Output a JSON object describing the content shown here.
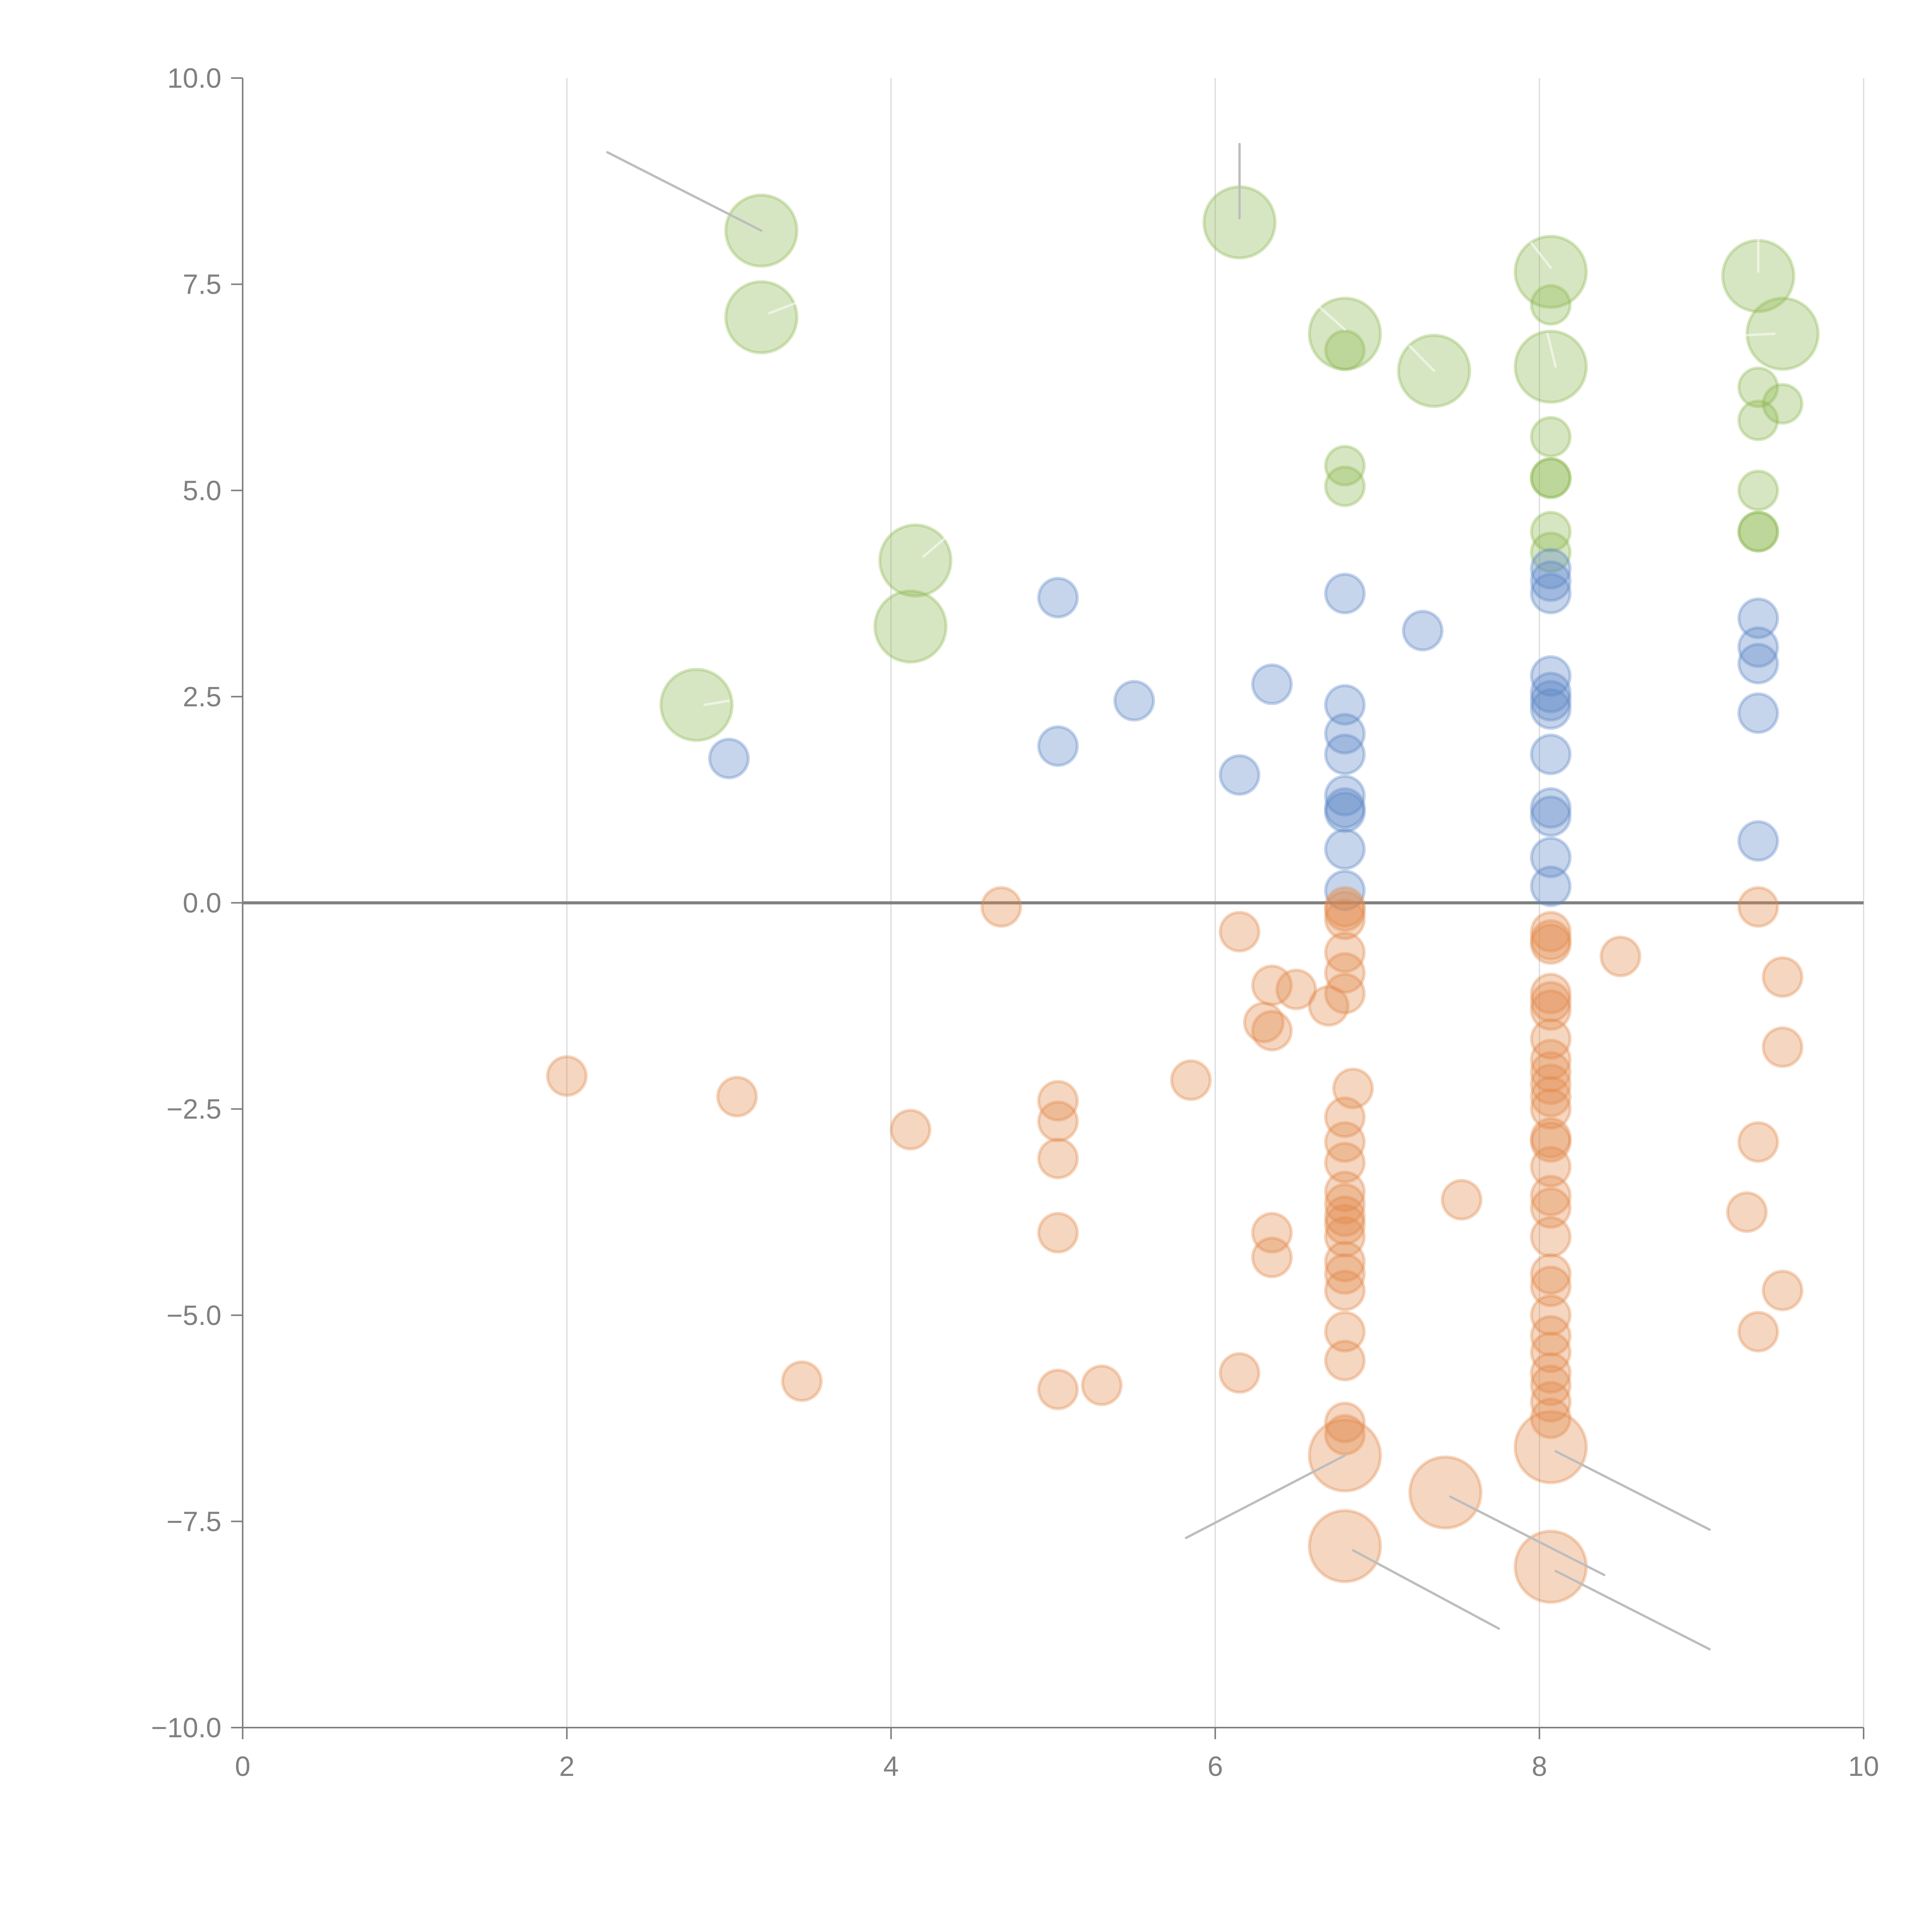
{
  "chart_data": {
    "type": "scatter",
    "title": "",
    "xlabel": "",
    "ylabel": "",
    "xlim": [
      0,
      10
    ],
    "ylim": [
      -10,
      10
    ],
    "x_ticks": [
      "0",
      "2",
      "4",
      "6",
      "8",
      "10"
    ],
    "y_ticks": [
      "10.0",
      "7.5",
      "5.0",
      "2.5",
      "0.0",
      "−2.5",
      "−5.0",
      "−7.5",
      "−10.0"
    ],
    "x_tick_values": [
      0,
      2,
      4,
      6,
      8,
      10
    ],
    "y_tick_values": [
      10,
      7.5,
      5,
      2.5,
      0,
      -2.5,
      -5,
      -7.5,
      -10
    ],
    "grid": "vertical",
    "zero_line": true,
    "legend": "none",
    "colors": {
      "green": "#8bb84f",
      "blue": "#5b87c5",
      "orange": "#e3894a"
    },
    "series": [
      {
        "name": "green",
        "color": "#8bb84f",
        "points": [
          {
            "x": 3.2,
            "y": 8.15,
            "size": 2
          },
          {
            "x": 3.2,
            "y": 7.1,
            "size": 2
          },
          {
            "x": 6.15,
            "y": 8.25,
            "size": 2
          },
          {
            "x": 6.8,
            "y": 6.9,
            "size": 2
          },
          {
            "x": 6.8,
            "y": 6.7,
            "size": 1
          },
          {
            "x": 7.35,
            "y": 6.45,
            "size": 2
          },
          {
            "x": 8.07,
            "y": 7.65,
            "size": 2
          },
          {
            "x": 8.07,
            "y": 7.25,
            "size": 1
          },
          {
            "x": 8.07,
            "y": 6.5,
            "size": 2
          },
          {
            "x": 8.07,
            "y": 5.65,
            "size": 1
          },
          {
            "x": 8.07,
            "y": 5.15,
            "size": 1
          },
          {
            "x": 8.07,
            "y": 5.15,
            "size": 1
          },
          {
            "x": 8.07,
            "y": 4.5,
            "size": 1
          },
          {
            "x": 8.07,
            "y": 4.25,
            "size": 1
          },
          {
            "x": 6.8,
            "y": 5.3,
            "size": 1
          },
          {
            "x": 6.8,
            "y": 5.05,
            "size": 1
          },
          {
            "x": 9.35,
            "y": 7.6,
            "size": 2
          },
          {
            "x": 9.5,
            "y": 6.9,
            "size": 2
          },
          {
            "x": 9.35,
            "y": 6.25,
            "size": 1
          },
          {
            "x": 9.5,
            "y": 6.05,
            "size": 1
          },
          {
            "x": 9.35,
            "y": 5.85,
            "size": 1
          },
          {
            "x": 9.35,
            "y": 5.0,
            "size": 1
          },
          {
            "x": 9.35,
            "y": 4.5,
            "size": 1
          },
          {
            "x": 9.35,
            "y": 4.5,
            "size": 1
          },
          {
            "x": 4.15,
            "y": 4.15,
            "size": 2
          },
          {
            "x": 4.12,
            "y": 3.35,
            "size": 2
          },
          {
            "x": 2.8,
            "y": 2.4,
            "size": 2
          }
        ]
      },
      {
        "name": "blue",
        "color": "#5b87c5",
        "points": [
          {
            "x": 3.0,
            "y": 1.75,
            "size": 1
          },
          {
            "x": 5.03,
            "y": 3.7,
            "size": 1
          },
          {
            "x": 5.03,
            "y": 1.9,
            "size": 1
          },
          {
            "x": 5.5,
            "y": 2.45,
            "size": 1
          },
          {
            "x": 6.15,
            "y": 1.55,
            "size": 1
          },
          {
            "x": 6.35,
            "y": 2.65,
            "size": 1
          },
          {
            "x": 6.8,
            "y": 3.75,
            "size": 1
          },
          {
            "x": 6.8,
            "y": 2.4,
            "size": 1
          },
          {
            "x": 6.8,
            "y": 2.05,
            "size": 1
          },
          {
            "x": 6.8,
            "y": 1.8,
            "size": 1
          },
          {
            "x": 6.8,
            "y": 1.3,
            "size": 1
          },
          {
            "x": 6.8,
            "y": 1.15,
            "size": 1
          },
          {
            "x": 6.8,
            "y": 1.1,
            "size": 1
          },
          {
            "x": 6.8,
            "y": 0.65,
            "size": 1
          },
          {
            "x": 6.8,
            "y": 0.15,
            "size": 1
          },
          {
            "x": 7.28,
            "y": 3.3,
            "size": 1
          },
          {
            "x": 8.07,
            "y": 4.05,
            "size": 1
          },
          {
            "x": 8.07,
            "y": 3.9,
            "size": 1
          },
          {
            "x": 8.07,
            "y": 3.75,
            "size": 1
          },
          {
            "x": 8.07,
            "y": 2.75,
            "size": 1
          },
          {
            "x": 8.07,
            "y": 2.55,
            "size": 1
          },
          {
            "x": 8.07,
            "y": 2.45,
            "size": 1
          },
          {
            "x": 8.07,
            "y": 2.35,
            "size": 1
          },
          {
            "x": 8.07,
            "y": 1.8,
            "size": 1
          },
          {
            "x": 8.07,
            "y": 1.15,
            "size": 1
          },
          {
            "x": 8.07,
            "y": 1.05,
            "size": 1
          },
          {
            "x": 8.07,
            "y": 0.55,
            "size": 1
          },
          {
            "x": 8.07,
            "y": 0.2,
            "size": 1
          },
          {
            "x": 9.35,
            "y": 3.45,
            "size": 1
          },
          {
            "x": 9.35,
            "y": 3.1,
            "size": 1
          },
          {
            "x": 9.35,
            "y": 2.9,
            "size": 1
          },
          {
            "x": 9.35,
            "y": 2.3,
            "size": 1
          },
          {
            "x": 9.35,
            "y": 0.75,
            "size": 1
          }
        ]
      },
      {
        "name": "orange",
        "color": "#e3894a",
        "points": [
          {
            "x": 2.0,
            "y": -2.1,
            "size": 1
          },
          {
            "x": 3.05,
            "y": -2.35,
            "size": 1
          },
          {
            "x": 3.45,
            "y": -5.8,
            "size": 1
          },
          {
            "x": 4.12,
            "y": -2.75,
            "size": 1
          },
          {
            "x": 4.68,
            "y": -0.05,
            "size": 1
          },
          {
            "x": 5.03,
            "y": -2.4,
            "size": 1
          },
          {
            "x": 5.03,
            "y": -2.65,
            "size": 1
          },
          {
            "x": 5.03,
            "y": -3.1,
            "size": 1
          },
          {
            "x": 5.03,
            "y": -4.0,
            "size": 1
          },
          {
            "x": 5.03,
            "y": -5.9,
            "size": 1
          },
          {
            "x": 5.3,
            "y": -5.85,
            "size": 1
          },
          {
            "x": 5.85,
            "y": -2.15,
            "size": 1
          },
          {
            "x": 6.15,
            "y": -0.35,
            "size": 1
          },
          {
            "x": 6.15,
            "y": -5.7,
            "size": 1
          },
          {
            "x": 6.35,
            "y": -1.0,
            "size": 1
          },
          {
            "x": 6.3,
            "y": -1.45,
            "size": 1
          },
          {
            "x": 6.35,
            "y": -1.55,
            "size": 1
          },
          {
            "x": 6.5,
            "y": -1.05,
            "size": 1
          },
          {
            "x": 6.35,
            "y": -4.0,
            "size": 1
          },
          {
            "x": 6.35,
            "y": -4.3,
            "size": 1
          },
          {
            "x": 6.7,
            "y": -1.25,
            "size": 1
          },
          {
            "x": 6.8,
            "y": -0.05,
            "size": 1
          },
          {
            "x": 6.8,
            "y": -0.1,
            "size": 1
          },
          {
            "x": 6.8,
            "y": -0.2,
            "size": 1
          },
          {
            "x": 6.8,
            "y": -0.6,
            "size": 1
          },
          {
            "x": 6.8,
            "y": -0.85,
            "size": 1
          },
          {
            "x": 6.8,
            "y": -1.1,
            "size": 1
          },
          {
            "x": 6.85,
            "y": -2.25,
            "size": 1
          },
          {
            "x": 6.8,
            "y": -2.6,
            "size": 1
          },
          {
            "x": 6.8,
            "y": -2.9,
            "size": 1
          },
          {
            "x": 6.8,
            "y": -3.15,
            "size": 1
          },
          {
            "x": 6.8,
            "y": -3.5,
            "size": 1
          },
          {
            "x": 6.8,
            "y": -3.65,
            "size": 1
          },
          {
            "x": 6.8,
            "y": -3.8,
            "size": 1
          },
          {
            "x": 6.8,
            "y": -3.9,
            "size": 1
          },
          {
            "x": 6.8,
            "y": -4.05,
            "size": 1
          },
          {
            "x": 6.8,
            "y": -4.35,
            "size": 1
          },
          {
            "x": 6.8,
            "y": -4.5,
            "size": 1
          },
          {
            "x": 6.8,
            "y": -4.7,
            "size": 1
          },
          {
            "x": 6.8,
            "y": -5.2,
            "size": 1
          },
          {
            "x": 6.8,
            "y": -5.55,
            "size": 1
          },
          {
            "x": 6.8,
            "y": -6.3,
            "size": 1
          },
          {
            "x": 6.8,
            "y": -6.45,
            "size": 1
          },
          {
            "x": 6.8,
            "y": -6.7,
            "size": 2
          },
          {
            "x": 6.8,
            "y": -7.8,
            "size": 2
          },
          {
            "x": 7.42,
            "y": -7.15,
            "size": 2
          },
          {
            "x": 7.52,
            "y": -3.6,
            "size": 1
          },
          {
            "x": 8.07,
            "y": -0.35,
            "size": 1
          },
          {
            "x": 8.07,
            "y": -0.45,
            "size": 1
          },
          {
            "x": 8.07,
            "y": -0.5,
            "size": 1
          },
          {
            "x": 8.07,
            "y": -1.1,
            "size": 1
          },
          {
            "x": 8.07,
            "y": -1.2,
            "size": 1
          },
          {
            "x": 8.07,
            "y": -1.3,
            "size": 1
          },
          {
            "x": 8.07,
            "y": -1.65,
            "size": 1
          },
          {
            "x": 8.07,
            "y": -1.9,
            "size": 1
          },
          {
            "x": 8.07,
            "y": -2.05,
            "size": 1
          },
          {
            "x": 8.07,
            "y": -2.2,
            "size": 1
          },
          {
            "x": 8.07,
            "y": -2.35,
            "size": 1
          },
          {
            "x": 8.07,
            "y": -2.5,
            "size": 1
          },
          {
            "x": 8.07,
            "y": -2.85,
            "size": 1
          },
          {
            "x": 8.07,
            "y": -2.9,
            "size": 1
          },
          {
            "x": 8.07,
            "y": -3.2,
            "size": 1
          },
          {
            "x": 8.07,
            "y": -3.55,
            "size": 1
          },
          {
            "x": 8.07,
            "y": -3.7,
            "size": 1
          },
          {
            "x": 8.07,
            "y": -4.05,
            "size": 1
          },
          {
            "x": 8.07,
            "y": -4.5,
            "size": 1
          },
          {
            "x": 8.07,
            "y": -4.65,
            "size": 1
          },
          {
            "x": 8.07,
            "y": -5.0,
            "size": 1
          },
          {
            "x": 8.07,
            "y": -5.25,
            "size": 1
          },
          {
            "x": 8.07,
            "y": -5.45,
            "size": 1
          },
          {
            "x": 8.07,
            "y": -5.7,
            "size": 1
          },
          {
            "x": 8.07,
            "y": -5.85,
            "size": 1
          },
          {
            "x": 8.07,
            "y": -6.05,
            "size": 1
          },
          {
            "x": 8.07,
            "y": -6.25,
            "size": 1
          },
          {
            "x": 8.07,
            "y": -6.6,
            "size": 2
          },
          {
            "x": 8.07,
            "y": -8.05,
            "size": 2
          },
          {
            "x": 8.5,
            "y": -0.65,
            "size": 1
          },
          {
            "x": 9.35,
            "y": -0.05,
            "size": 1
          },
          {
            "x": 9.5,
            "y": -0.9,
            "size": 1
          },
          {
            "x": 9.5,
            "y": -1.75,
            "size": 1
          },
          {
            "x": 9.35,
            "y": -2.9,
            "size": 1
          },
          {
            "x": 9.28,
            "y": -3.75,
            "size": 1
          },
          {
            "x": 9.5,
            "y": -4.7,
            "size": 1
          },
          {
            "x": 9.35,
            "y": -5.2,
            "size": 1
          }
        ]
      }
    ],
    "leader_lines": [
      {
        "from": [
          3.2,
          8.15
        ],
        "to": [
          2.25,
          9.1
        ],
        "style": "gray"
      },
      {
        "from": [
          6.15,
          8.3
        ],
        "to": [
          6.15,
          9.2
        ],
        "style": "gray"
      },
      {
        "from": [
          6.8,
          -6.7
        ],
        "to": [
          5.82,
          -7.7
        ],
        "style": "gray"
      },
      {
        "from": [
          6.85,
          -7.85
        ],
        "to": [
          7.75,
          -8.8
        ],
        "style": "gray"
      },
      {
        "from": [
          7.45,
          -7.2
        ],
        "to": [
          8.4,
          -8.15
        ],
        "style": "gray"
      },
      {
        "from": [
          8.1,
          -6.65
        ],
        "to": [
          9.05,
          -7.6
        ],
        "style": "gray"
      },
      {
        "from": [
          8.1,
          -8.1
        ],
        "to": [
          9.05,
          -9.05
        ],
        "style": "gray"
      },
      {
        "from": [
          3.25,
          7.15
        ],
        "to": [
          3.45,
          7.3
        ],
        "style": "white"
      },
      {
        "from": [
          4.2,
          4.2
        ],
        "to": [
          4.35,
          4.45
        ],
        "style": "white"
      },
      {
        "from": [
          2.85,
          2.4
        ],
        "to": [
          3.0,
          2.45
        ],
        "style": "white"
      },
      {
        "from": [
          6.8,
          6.95
        ],
        "to": [
          6.6,
          7.3
        ],
        "style": "white"
      },
      {
        "from": [
          7.35,
          6.45
        ],
        "to": [
          7.2,
          6.75
        ],
        "style": "white"
      },
      {
        "from": [
          8.07,
          7.7
        ],
        "to": [
          7.95,
          8.0
        ],
        "style": "white"
      },
      {
        "from": [
          8.1,
          6.5
        ],
        "to": [
          8.05,
          6.9
        ],
        "style": "white"
      },
      {
        "from": [
          9.35,
          7.65
        ],
        "to": [
          9.35,
          8.1
        ],
        "style": "white"
      },
      {
        "from": [
          9.45,
          6.9
        ],
        "to": [
          9.25,
          6.88
        ],
        "style": "white"
      }
    ]
  }
}
